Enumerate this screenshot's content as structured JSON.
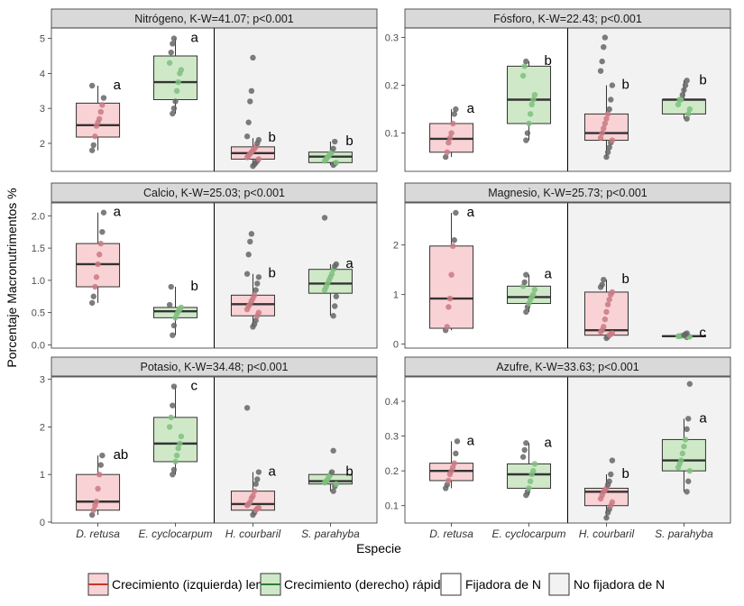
{
  "chart_data": {
    "type": "box",
    "ylabel": "Porcentaje Macronutrimentos %",
    "xlabel": "Especie",
    "categories": [
      "D. retusa",
      "E. cyclocarpum",
      "H. courbaril",
      "S. parahyba"
    ],
    "growth": [
      "lento",
      "rápido",
      "lento",
      "rápido"
    ],
    "fixation_divider_after": 1,
    "colors": {
      "lento_fill": "#f9d2d5",
      "lento_point": "#c97a82",
      "rapido_fill": "#cfe9c8",
      "rapido_point": "#7fbf7f",
      "fijadora_bg": "#ffffff",
      "no_fijadora_bg": "#f2f2f2",
      "strip_bg": "#d9d9d9",
      "gray_point": "#666666",
      "median": "#333333"
    },
    "panels": [
      {
        "title": "Nitrógeno, K-W=41.07; p<0.001",
        "ylim": [
          1.2,
          5.3
        ],
        "yticks": [
          "2",
          "3",
          "4",
          "5"
        ],
        "boxes": [
          {
            "q1": 2.18,
            "median": 2.52,
            "q3": 3.15,
            "wlo": 1.8,
            "whi": 3.65,
            "letter": "a",
            "points": [
              1.8,
              1.95,
              2.2,
              2.5,
              2.6,
              2.7,
              2.9,
              3.1,
              3.3,
              3.65
            ]
          },
          {
            "q1": 3.25,
            "median": 3.75,
            "q3": 4.5,
            "wlo": 2.85,
            "whi": 5.0,
            "letter": "a",
            "points": [
              2.85,
              3.0,
              3.2,
              3.5,
              3.75,
              4.0,
              4.1,
              4.3,
              4.6,
              4.85,
              5.0
            ]
          },
          {
            "q1": 1.55,
            "median": 1.72,
            "q3": 1.9,
            "wlo": 1.35,
            "whi": 2.15,
            "letter": "b",
            "points": [
              1.35,
              1.4,
              1.45,
              1.5,
              1.55,
              1.6,
              1.65,
              1.7,
              1.75,
              1.8,
              1.85,
              1.9,
              2.0,
              2.1,
              2.2,
              2.6,
              3.2,
              3.5,
              4.45
            ]
          },
          {
            "q1": 1.45,
            "median": 1.62,
            "q3": 1.75,
            "wlo": 1.38,
            "whi": 2.05,
            "letter": "b",
            "points": [
              1.38,
              1.42,
              1.45,
              1.5,
              1.55,
              1.6,
              1.65,
              1.7,
              1.75,
              1.85,
              2.05
            ]
          }
        ]
      },
      {
        "title": "Fósforo, K-W=22.43; p<0.001",
        "ylim": [
          0.02,
          0.32
        ],
        "yticks": [
          "0.1",
          "0.2",
          "0.3"
        ],
        "boxes": [
          {
            "q1": 0.06,
            "median": 0.088,
            "q3": 0.12,
            "wlo": 0.05,
            "whi": 0.15,
            "letter": "a",
            "points": [
              0.05,
              0.06,
              0.08,
              0.09,
              0.1,
              0.12,
              0.14,
              0.15
            ]
          },
          {
            "q1": 0.12,
            "median": 0.17,
            "q3": 0.24,
            "wlo": 0.085,
            "whi": 0.25,
            "letter": "b",
            "points": [
              0.085,
              0.1,
              0.12,
              0.14,
              0.16,
              0.17,
              0.18,
              0.22,
              0.24,
              0.25
            ]
          },
          {
            "q1": 0.085,
            "median": 0.1,
            "q3": 0.14,
            "wlo": 0.05,
            "whi": 0.2,
            "letter": "b",
            "points": [
              0.05,
              0.06,
              0.07,
              0.08,
              0.085,
              0.09,
              0.1,
              0.11,
              0.12,
              0.13,
              0.14,
              0.15,
              0.17,
              0.2,
              0.23,
              0.25,
              0.28,
              0.3
            ]
          },
          {
            "q1": 0.14,
            "median": 0.17,
            "q3": 0.17,
            "wlo": 0.13,
            "whi": 0.21,
            "letter": "b",
            "points": [
              0.13,
              0.14,
              0.15,
              0.16,
              0.17,
              0.17,
              0.18,
              0.19,
              0.2,
              0.21
            ]
          }
        ]
      },
      {
        "title": "Calcio, K-W=25.03; p<0.001",
        "ylim": [
          -0.05,
          2.2
        ],
        "yticks": [
          "0.0",
          "0.5",
          "1.0",
          "1.5",
          "2.0"
        ],
        "boxes": [
          {
            "q1": 0.9,
            "median": 1.25,
            "q3": 1.57,
            "wlo": 0.65,
            "whi": 2.05,
            "letter": "a",
            "points": [
              0.65,
              0.75,
              0.9,
              1.05,
              1.25,
              1.4,
              1.57,
              1.75,
              2.05
            ]
          },
          {
            "q1": 0.42,
            "median": 0.52,
            "q3": 0.58,
            "wlo": 0.15,
            "whi": 0.9,
            "letter": "b",
            "points": [
              0.15,
              0.3,
              0.42,
              0.48,
              0.52,
              0.55,
              0.58,
              0.62,
              0.9
            ]
          },
          {
            "q1": 0.45,
            "median": 0.63,
            "q3": 0.77,
            "wlo": 0.28,
            "whi": 1.1,
            "letter": "b",
            "points": [
              0.28,
              0.32,
              0.38,
              0.45,
              0.5,
              0.55,
              0.6,
              0.63,
              0.68,
              0.72,
              0.77,
              0.85,
              0.95,
              1.05,
              1.1,
              1.4,
              1.6,
              1.72
            ]
          },
          {
            "q1": 0.8,
            "median": 0.95,
            "q3": 1.17,
            "wlo": 0.45,
            "whi": 1.25,
            "letter": "a",
            "points": [
              0.45,
              0.6,
              0.75,
              0.85,
              0.9,
              0.95,
              1.0,
              1.05,
              1.1,
              1.17,
              1.22,
              1.25,
              1.97
            ]
          }
        ]
      },
      {
        "title": "Magnesio, K-W=25.73; p<0.001",
        "ylim": [
          -0.08,
          2.85
        ],
        "yticks": [
          "0",
          "1",
          "2"
        ],
        "boxes": [
          {
            "q1": 0.32,
            "median": 0.92,
            "q3": 1.98,
            "wlo": 0.28,
            "whi": 2.65,
            "letter": "a",
            "points": [
              0.28,
              0.35,
              0.75,
              0.92,
              1.4,
              1.98,
              2.1,
              2.65
            ]
          },
          {
            "q1": 0.82,
            "median": 0.95,
            "q3": 1.17,
            "wlo": 0.65,
            "whi": 1.4,
            "letter": "a",
            "points": [
              0.65,
              0.75,
              0.82,
              0.9,
              0.95,
              1.0,
              1.1,
              1.17,
              1.25,
              1.4
            ]
          },
          {
            "q1": 0.18,
            "median": 0.28,
            "q3": 1.05,
            "wlo": 0.12,
            "whi": 1.3,
            "letter": "b",
            "points": [
              0.12,
              0.15,
              0.18,
              0.2,
              0.22,
              0.25,
              0.28,
              0.35,
              0.5,
              0.65,
              0.8,
              0.9,
              1.0,
              1.05,
              1.15,
              1.2,
              1.3
            ]
          },
          {
            "q1": 0.15,
            "median": 0.16,
            "q3": 0.17,
            "wlo": 0.14,
            "whi": 0.22,
            "letter": "c",
            "points": [
              0.14,
              0.15,
              0.15,
              0.16,
              0.16,
              0.17,
              0.17,
              0.18,
              0.2,
              0.22
            ]
          }
        ]
      },
      {
        "title": "Potasio, K-W=34.48; p<0.001",
        "ylim": [
          -0.02,
          3.05
        ],
        "yticks": [
          "0",
          "1",
          "2",
          "3"
        ],
        "boxes": [
          {
            "q1": 0.25,
            "median": 0.43,
            "q3": 1.0,
            "wlo": 0.15,
            "whi": 1.4,
            "letter": "ab",
            "points": [
              0.15,
              0.25,
              0.35,
              0.43,
              0.7,
              1.0,
              1.2,
              1.4
            ]
          },
          {
            "q1": 1.27,
            "median": 1.65,
            "q3": 2.2,
            "wlo": 1.0,
            "whi": 2.85,
            "letter": "c",
            "points": [
              1.0,
              1.1,
              1.27,
              1.4,
              1.55,
              1.65,
              1.8,
              2.0,
              2.2,
              2.45,
              2.85
            ]
          },
          {
            "q1": 0.25,
            "median": 0.38,
            "q3": 0.65,
            "wlo": 0.15,
            "whi": 1.05,
            "letter": "a",
            "points": [
              0.15,
              0.2,
              0.25,
              0.28,
              0.3,
              0.35,
              0.38,
              0.42,
              0.5,
              0.55,
              0.65,
              0.8,
              0.9,
              1.05,
              2.4
            ]
          },
          {
            "q1": 0.8,
            "median": 0.86,
            "q3": 1.0,
            "wlo": 0.65,
            "whi": 1.05,
            "letter": "b",
            "points": [
              0.65,
              0.75,
              0.8,
              0.83,
              0.86,
              0.9,
              0.95,
              1.0,
              1.05,
              1.5
            ]
          }
        ]
      },
      {
        "title": "Azufre, K-W=33.63; p<0.001",
        "ylim": [
          0.05,
          0.47
        ],
        "yticks": [
          "0.1",
          "0.2",
          "0.3",
          "0.4"
        ],
        "boxes": [
          {
            "q1": 0.172,
            "median": 0.2,
            "q3": 0.222,
            "wlo": 0.15,
            "whi": 0.285,
            "letter": "a",
            "points": [
              0.15,
              0.16,
              0.172,
              0.19,
              0.2,
              0.21,
              0.222,
              0.25,
              0.285
            ]
          },
          {
            "q1": 0.15,
            "median": 0.19,
            "q3": 0.22,
            "wlo": 0.13,
            "whi": 0.28,
            "letter": "a",
            "points": [
              0.13,
              0.14,
              0.15,
              0.17,
              0.19,
              0.2,
              0.22,
              0.24,
              0.26,
              0.28
            ]
          },
          {
            "q1": 0.1,
            "median": 0.14,
            "q3": 0.15,
            "wlo": 0.065,
            "whi": 0.19,
            "letter": "b",
            "points": [
              0.065,
              0.08,
              0.09,
              0.1,
              0.11,
              0.12,
              0.13,
              0.14,
              0.145,
              0.15,
              0.16,
              0.17,
              0.19,
              0.23
            ]
          },
          {
            "q1": 0.2,
            "median": 0.23,
            "q3": 0.29,
            "wlo": 0.14,
            "whi": 0.35,
            "letter": "a",
            "points": [
              0.14,
              0.17,
              0.2,
              0.21,
              0.22,
              0.23,
              0.25,
              0.27,
              0.29,
              0.32,
              0.35,
              0.45
            ]
          }
        ]
      }
    ],
    "legend": [
      {
        "label": "Crecimiento (izquierda) lento",
        "kind": "box",
        "fill": "#f9d2d5",
        "line": "#c0392b"
      },
      {
        "label": "Crecimiento (derecho) rápido",
        "kind": "box",
        "fill": "#cfe9c8",
        "line": "#2e7d32"
      },
      {
        "label": "Fijadora de N",
        "kind": "bg",
        "fill": "#ffffff"
      },
      {
        "label": "No fijadora de N",
        "kind": "bg",
        "fill": "#f2f2f2"
      }
    ]
  }
}
